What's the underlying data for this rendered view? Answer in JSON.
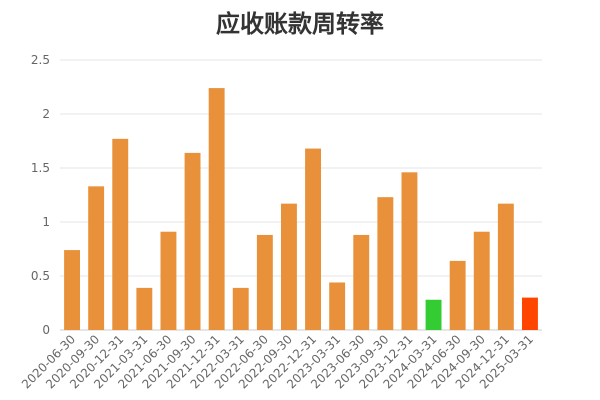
{
  "chart_data": {
    "type": "bar",
    "title": "应收账款周转率",
    "xlabel": "",
    "ylabel": "",
    "ylim": [
      0,
      2.5
    ],
    "yticks": [
      "0",
      "0.5",
      "1",
      "1.5",
      "2",
      "2.5"
    ],
    "grid": true,
    "legend": "none",
    "default_color": "#e8913a",
    "categories": [
      "2020-06-30",
      "2020-09-30",
      "2020-12-31",
      "2021-03-31",
      "2021-06-30",
      "2021-09-30",
      "2021-12-31",
      "2022-03-31",
      "2022-06-30",
      "2022-09-30",
      "2022-12-31",
      "2023-03-31",
      "2023-06-30",
      "2023-09-30",
      "2023-12-31",
      "2024-03-31",
      "2024-06-30",
      "2024-09-30",
      "2024-12-31",
      "2025-03-31"
    ],
    "values": [
      0.74,
      1.33,
      1.77,
      0.39,
      0.91,
      1.64,
      2.24,
      0.39,
      0.88,
      1.17,
      1.68,
      0.44,
      0.88,
      1.23,
      1.46,
      0.28,
      0.64,
      0.91,
      1.17,
      0.3
    ],
    "colors": [
      "#e8913a",
      "#e8913a",
      "#e8913a",
      "#e8913a",
      "#e8913a",
      "#e8913a",
      "#e8913a",
      "#e8913a",
      "#e8913a",
      "#e8913a",
      "#e8913a",
      "#e8913a",
      "#e8913a",
      "#e8913a",
      "#e8913a",
      "#33cc33",
      "#e8913a",
      "#e8913a",
      "#e8913a",
      "#ff4500"
    ]
  }
}
